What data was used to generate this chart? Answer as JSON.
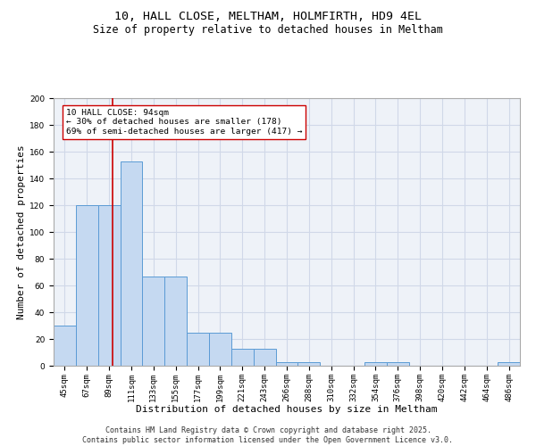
{
  "title": "10, HALL CLOSE, MELTHAM, HOLMFIRTH, HD9 4EL",
  "subtitle": "Size of property relative to detached houses in Meltham",
  "xlabel": "Distribution of detached houses by size in Meltham",
  "ylabel": "Number of detached properties",
  "categories": [
    "45sqm",
    "67sqm",
    "89sqm",
    "111sqm",
    "133sqm",
    "155sqm",
    "177sqm",
    "199sqm",
    "221sqm",
    "243sqm",
    "266sqm",
    "288sqm",
    "310sqm",
    "332sqm",
    "354sqm",
    "376sqm",
    "398sqm",
    "420sqm",
    "442sqm",
    "464sqm",
    "486sqm"
  ],
  "values": [
    30,
    120,
    120,
    153,
    67,
    67,
    25,
    25,
    13,
    13,
    3,
    3,
    0,
    0,
    3,
    3,
    0,
    0,
    0,
    0,
    3
  ],
  "bar_color": "#c5d9f1",
  "bar_edge_color": "#5b9bd5",
  "red_line_x": 2.15,
  "annotation_text": "10 HALL CLOSE: 94sqm\n← 30% of detached houses are smaller (178)\n69% of semi-detached houses are larger (417) →",
  "annotation_box_color": "#ffffff",
  "annotation_box_edge": "#cc0000",
  "ylim": [
    0,
    200
  ],
  "yticks": [
    0,
    20,
    40,
    60,
    80,
    100,
    120,
    140,
    160,
    180,
    200
  ],
  "grid_color": "#d0d8e8",
  "bg_color": "#eef2f8",
  "footer": "Contains HM Land Registry data © Crown copyright and database right 2025.\nContains public sector information licensed under the Open Government Licence v3.0.",
  "title_fontsize": 9.5,
  "subtitle_fontsize": 8.5,
  "xlabel_fontsize": 8,
  "ylabel_fontsize": 8,
  "annot_fontsize": 6.8,
  "tick_fontsize": 6.5,
  "footer_fontsize": 6
}
